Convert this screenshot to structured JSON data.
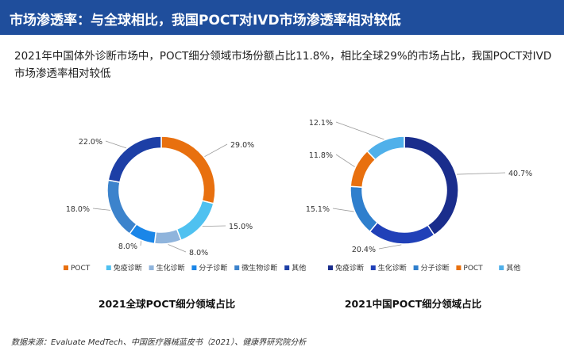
{
  "header": {
    "title": "市场渗透率：与全球相比，我国POCT对IVD市场渗透率相对较低"
  },
  "subtitle": "2021年中国体外诊断市场中，POCT细分领域市场份额占比11.8%，相比全球29%的市场占比，我国POCT对IVD市场渗透率相对较低",
  "source": "数据来源：Evaluate MedTech、中国医疗器械蓝皮书（2021）、健康界研究院分析",
  "chart_data": [
    {
      "type": "pie",
      "donut": true,
      "title": "2021全球POCT细分领域占比",
      "legend_position": "bottom",
      "slices": [
        {
          "name": "POCT",
          "value": 29.0,
          "label": "29.0%",
          "color": "#e8700f"
        },
        {
          "name": "免疫诊断",
          "value": 15.0,
          "label": "15.0%",
          "color": "#4fc1f0"
        },
        {
          "name": "生化诊断",
          "value": 8.0,
          "label": "8.0%",
          "color": "#8fb4dc"
        },
        {
          "name": "分子诊断",
          "value": 8.0,
          "label": "8.0%",
          "color": "#1a86e8"
        },
        {
          "name": "微生物诊断",
          "value": 18.0,
          "label": "18.0%",
          "color": "#3c83cc"
        },
        {
          "name": "其他",
          "value": 22.0,
          "label": "22.0%",
          "color": "#1d3fa6"
        }
      ]
    },
    {
      "type": "pie",
      "donut": true,
      "title": "2021中国POCT细分领域占比",
      "legend_position": "bottom",
      "slices": [
        {
          "name": "免疫诊断",
          "value": 40.7,
          "label": "40.7%",
          "color": "#1a2d8c"
        },
        {
          "name": "生化诊断",
          "value": 20.4,
          "label": "20.4%",
          "color": "#2040b8"
        },
        {
          "name": "分子诊断",
          "value": 15.1,
          "label": "15.1%",
          "color": "#2f7fcd"
        },
        {
          "name": "POCT",
          "value": 11.8,
          "label": "11.8%",
          "color": "#e8700f"
        },
        {
          "name": "其他",
          "value": 12.1,
          "label": "12.1%",
          "color": "#4fb0ea"
        }
      ]
    }
  ]
}
